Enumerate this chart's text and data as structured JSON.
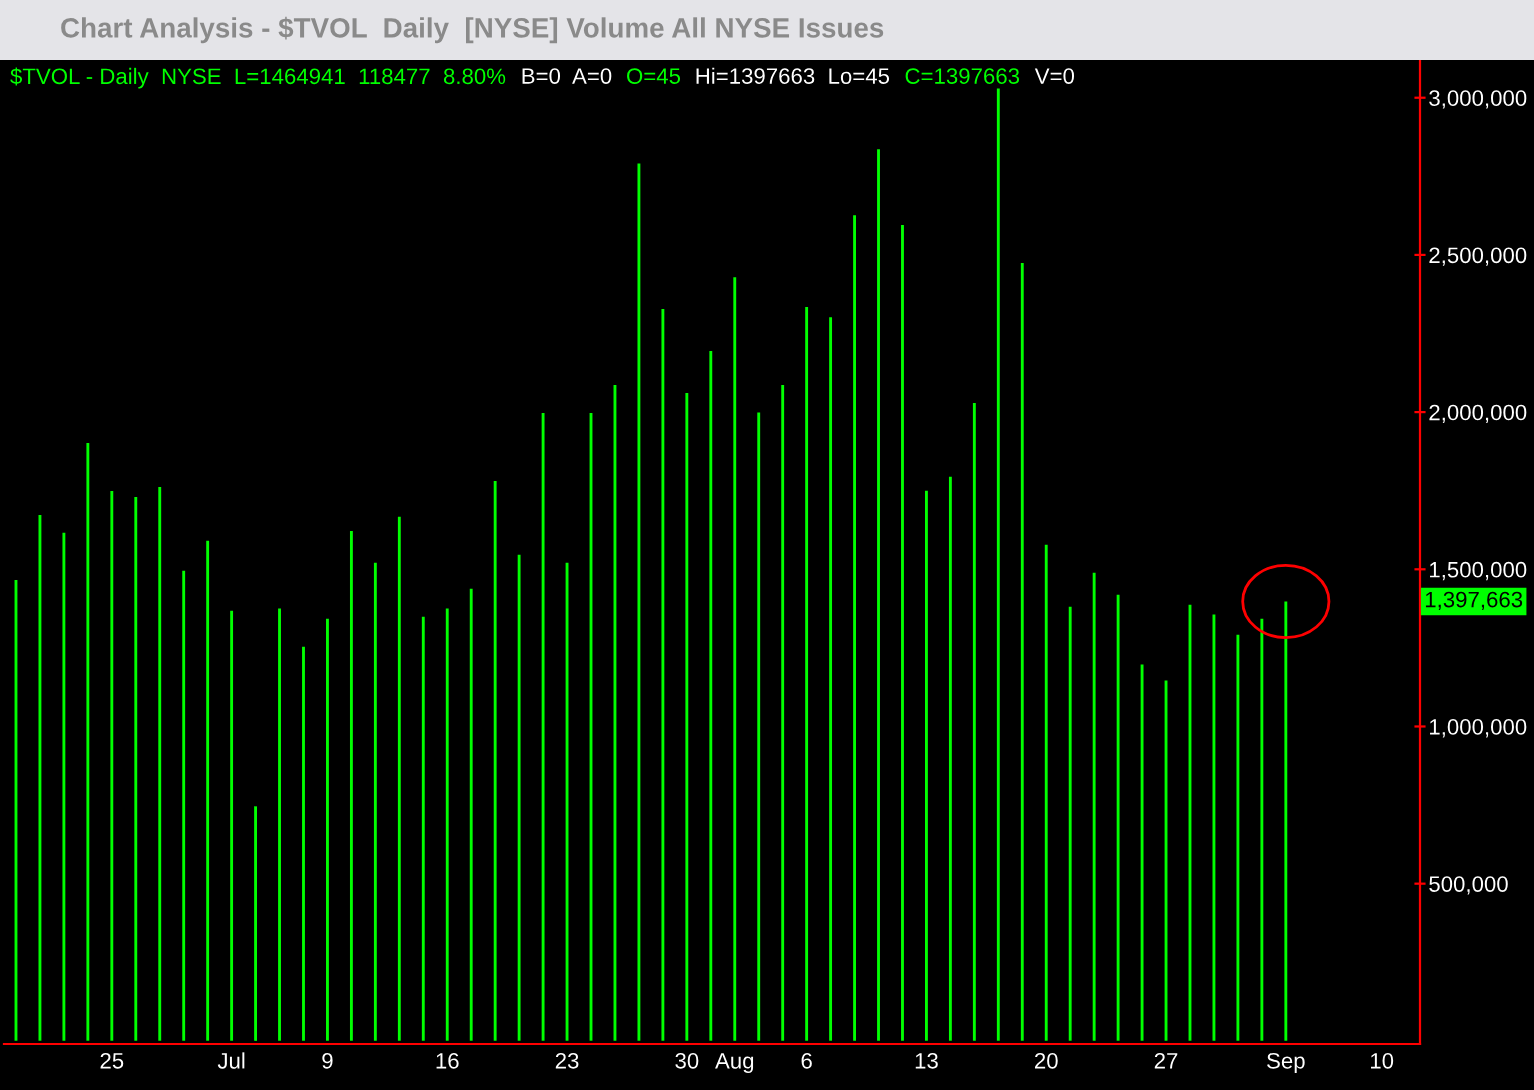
{
  "chart_data": {
    "type": "bar",
    "title": "Chart Analysis - $TVOL  Daily  [NYSE] Volume All NYSE Issues",
    "categories": [
      null,
      null,
      null,
      null,
      "25",
      null,
      null,
      null,
      null,
      "Jul",
      null,
      null,
      null,
      "9",
      null,
      null,
      null,
      null,
      "16",
      null,
      null,
      null,
      null,
      "23",
      null,
      null,
      null,
      null,
      "30",
      null,
      "Aug",
      null,
      null,
      "6",
      null,
      null,
      null,
      null,
      "13",
      null,
      null,
      null,
      null,
      "20",
      null,
      null,
      null,
      null,
      "27",
      null,
      null,
      null,
      null,
      "Sep",
      null,
      null,
      null,
      "10",
      null
    ],
    "values": [
      1466000,
      1673000,
      1616000,
      1902000,
      1749000,
      1730000,
      1762000,
      1495000,
      1591000,
      1368000,
      746000,
      1375000,
      1254000,
      1343000,
      1622000,
      1521000,
      1667000,
      1349000,
      1375000,
      1438000,
      1781000,
      1546000,
      1997000,
      1521000,
      1997000,
      2086000,
      2791000,
      2328000,
      2061000,
      2194000,
      2429000,
      1999000,
      2086000,
      2334000,
      2302000,
      2626000,
      2836000,
      2595000,
      1750000,
      1794000,
      2029000,
      3029000,
      2474000,
      1578000,
      1381000,
      1489000,
      1419000,
      1197000,
      1146000,
      1387000,
      1356000,
      1292000,
      1343000,
      1397663,
      null,
      null,
      null,
      null,
      null
    ],
    "color": "#00ff00",
    "ylim": [
      -10000,
      3120000
    ],
    "yticks": [
      {
        "value": 500000,
        "label": "500,000"
      },
      {
        "value": 1000000,
        "label": "1,000,000"
      },
      {
        "value": 1500000,
        "label": "1,500,000"
      },
      {
        "value": 2000000,
        "label": "2,000,000"
      },
      {
        "value": 2500000,
        "label": "2,500,000"
      },
      {
        "value": 3000000,
        "label": "3,000,000"
      }
    ],
    "grid": false,
    "legend": false,
    "annotations": [
      "$TVOL - Daily  NYSE  L=1464941  118477  8.80%",
      "B=0  A=0",
      "O=45",
      "Hi=1397663  Lo=45",
      "C=1397663",
      "V=0",
      "1,397,663"
    ]
  }
}
